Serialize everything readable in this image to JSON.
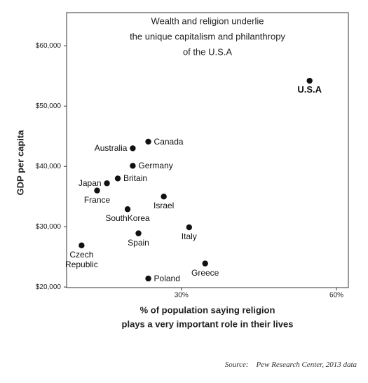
{
  "chart_data": {
    "type": "scatter",
    "title": [
      "Wealth and religion underlie",
      "the unique capitalism and philanthropy",
      "of the U.S.A"
    ],
    "x_label": [
      "% of population saying religion",
      "plays a very important role in their lives"
    ],
    "y_label": "GDP per capita",
    "source_label": "Source:",
    "source": "Pew Research Center, 2013 data",
    "xlim": [
      7.8,
      62.3
    ],
    "ylim": [
      19900,
      65500
    ],
    "xticks": [
      {
        "value": 30,
        "label": "30%"
      },
      {
        "value": 60,
        "label": "60%"
      }
    ],
    "yticks": [
      {
        "value": 20000,
        "label": "$20,000"
      },
      {
        "value": 30000,
        "label": "$30,000"
      },
      {
        "value": 40000,
        "label": "$40,000"
      },
      {
        "value": 50000,
        "label": "$50,000"
      },
      {
        "value": 60000,
        "label": "$60,000"
      }
    ],
    "color": "#111111",
    "points": [
      {
        "name": "U.S.A",
        "x": 54.8,
        "y": 54200
      },
      {
        "name": "Canada",
        "x": 23.6,
        "y": 44100
      },
      {
        "name": "Australia",
        "x": 20.6,
        "y": 43000
      },
      {
        "name": "Germany",
        "x": 20.6,
        "y": 40100
      },
      {
        "name": "Britain",
        "x": 17.7,
        "y": 38000
      },
      {
        "name": "Japan",
        "x": 15.6,
        "y": 37200
      },
      {
        "name": "France",
        "x": 13.7,
        "y": 36000
      },
      {
        "name": "Israel",
        "x": 26.6,
        "y": 35000
      },
      {
        "name": "SouthKorea",
        "x": 19.6,
        "y": 32900
      },
      {
        "name": "Spain",
        "x": 21.7,
        "y": 28900
      },
      {
        "name": "Italy",
        "x": 31.5,
        "y": 29900
      },
      {
        "name": "Czech Republic",
        "x": 10.7,
        "y": 26900
      },
      {
        "name": "Greece",
        "x": 34.6,
        "y": 23900
      },
      {
        "name": "Poland",
        "x": 23.6,
        "y": 21400
      }
    ]
  }
}
